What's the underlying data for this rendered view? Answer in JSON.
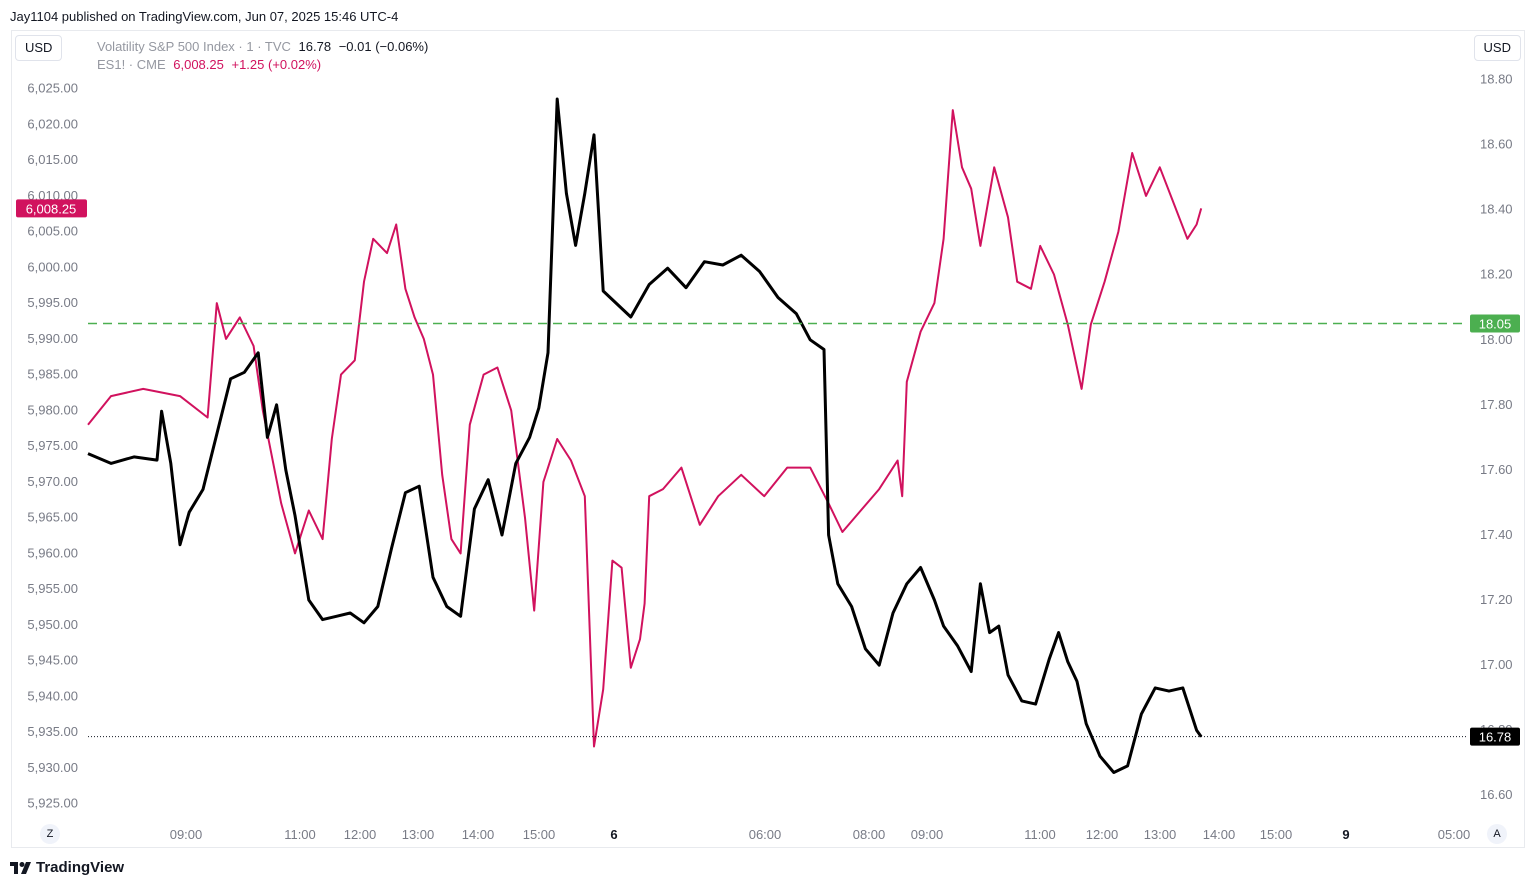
{
  "caption": "Jay1104 published on TradingView.com, Jun 07, 2025 15:46 UTC-4",
  "currency_left": "USD",
  "currency_right": "USD",
  "legend": [
    {
      "symbol": "Volatility S&P 500 Index · 1 · TVC",
      "last": "16.78",
      "change": "−0.01 (−0.06%)",
      "color": "#131722"
    },
    {
      "symbol": "ES1! · CME",
      "last": "6,008.25",
      "change": "+1.25 (+0.02%)",
      "color": "#d1125e"
    }
  ],
  "footer": {
    "brand": "TradingView",
    "left_nav": "Z",
    "right_nav": "A"
  },
  "chart_data": {
    "type": "line",
    "x_ticks": [
      "09:00",
      "11:00",
      "12:00",
      "13:00",
      "14:00",
      "15:00",
      "6",
      "06:00",
      "08:00",
      "09:00",
      "11:00",
      "12:00",
      "13:00",
      "14:00",
      "15:00",
      "9",
      "05:00"
    ],
    "left_axis": {
      "ticks": [
        "6,025.00",
        "6,020.00",
        "6,015.00",
        "6,010.00",
        "6,005.00",
        "6,000.00",
        "5,995.00",
        "5,990.00",
        "5,985.00",
        "5,980.00",
        "5,975.00",
        "5,970.00",
        "5,965.00",
        "5,960.00",
        "5,955.00",
        "5,950.00",
        "5,945.00",
        "5,940.00",
        "5,935.00",
        "5,930.00",
        "5,925.00"
      ],
      "range": [
        5923,
        6029
      ]
    },
    "right_axis": {
      "ticks": [
        "18.80",
        "18.60",
        "18.40",
        "18.20",
        "18.00",
        "17.80",
        "17.60",
        "17.40",
        "17.20",
        "17.00",
        "16.80",
        "16.60"
      ],
      "range": [
        16.53,
        18.86
      ]
    },
    "series": [
      {
        "name": "ES1! · CME",
        "color": "#d1125e",
        "axis": "left",
        "last_label": "6,008.25",
        "points": [
          [
            0,
            5978
          ],
          [
            5,
            5982
          ],
          [
            12,
            5983
          ],
          [
            20,
            5982
          ],
          [
            26,
            5979
          ],
          [
            28,
            5995
          ],
          [
            30,
            5990
          ],
          [
            33,
            5993
          ],
          [
            36,
            5989
          ],
          [
            38,
            5980
          ],
          [
            42,
            5967
          ],
          [
            45,
            5960
          ],
          [
            48,
            5966
          ],
          [
            51,
            5962
          ],
          [
            53,
            5976
          ],
          [
            55,
            5985
          ],
          [
            58,
            5987
          ],
          [
            60,
            5998
          ],
          [
            62,
            6004
          ],
          [
            65,
            6002
          ],
          [
            67,
            6006
          ],
          [
            69,
            5997
          ],
          [
            71,
            5993
          ],
          [
            73,
            5990
          ],
          [
            75,
            5985
          ],
          [
            77,
            5971
          ],
          [
            79,
            5962
          ],
          [
            81,
            5960
          ],
          [
            83,
            5978
          ],
          [
            86,
            5985
          ],
          [
            89,
            5986
          ],
          [
            92,
            5980
          ],
          [
            95,
            5965
          ],
          [
            97,
            5952
          ],
          [
            99,
            5970
          ],
          [
            102,
            5976
          ],
          [
            105,
            5973
          ],
          [
            108,
            5968
          ],
          [
            110,
            5933
          ],
          [
            112,
            5941
          ],
          [
            114,
            5959
          ],
          [
            116,
            5958
          ],
          [
            118,
            5944
          ],
          [
            120,
            5948
          ],
          [
            121,
            5953
          ],
          [
            122,
            5968
          ],
          [
            125,
            5969
          ],
          [
            129,
            5972
          ],
          [
            133,
            5964
          ],
          [
            137,
            5968
          ],
          [
            142,
            5971
          ],
          [
            147,
            5968
          ],
          [
            152,
            5972
          ],
          [
            157,
            5972
          ],
          [
            161,
            5967
          ],
          [
            164,
            5963
          ],
          [
            168,
            5966
          ],
          [
            172,
            5969
          ],
          [
            176,
            5973
          ],
          [
            177,
            5968
          ],
          [
            178,
            5984
          ],
          [
            181,
            5991
          ],
          [
            184,
            5995
          ],
          [
            186,
            6004
          ],
          [
            188,
            6022
          ],
          [
            190,
            6014
          ],
          [
            192,
            6011
          ],
          [
            194,
            6003
          ],
          [
            197,
            6014
          ],
          [
            200,
            6007
          ],
          [
            202,
            5998
          ],
          [
            205,
            5997
          ],
          [
            207,
            6003
          ],
          [
            210,
            5999
          ],
          [
            213,
            5992
          ],
          [
            216,
            5983
          ],
          [
            218,
            5992
          ],
          [
            221,
            5998
          ],
          [
            224,
            6005
          ],
          [
            227,
            6016
          ],
          [
            230,
            6010
          ],
          [
            233,
            6014
          ],
          [
            236,
            6009
          ],
          [
            239,
            6004
          ],
          [
            241,
            6006
          ],
          [
            242,
            6008.25
          ]
        ]
      },
      {
        "name": "Volatility S&P 500 Index · 1 · TVC",
        "color": "#000000",
        "axis": "right",
        "last_label": "16.78",
        "points": [
          [
            0,
            17.65
          ],
          [
            5,
            17.62
          ],
          [
            10,
            17.64
          ],
          [
            15,
            17.63
          ],
          [
            16,
            17.78
          ],
          [
            18,
            17.62
          ],
          [
            20,
            17.37
          ],
          [
            22,
            17.47
          ],
          [
            25,
            17.54
          ],
          [
            28,
            17.71
          ],
          [
            31,
            17.88
          ],
          [
            34,
            17.9
          ],
          [
            37,
            17.96
          ],
          [
            39,
            17.7
          ],
          [
            41,
            17.8
          ],
          [
            43,
            17.6
          ],
          [
            45,
            17.46
          ],
          [
            48,
            17.2
          ],
          [
            51,
            17.14
          ],
          [
            54,
            17.15
          ],
          [
            57,
            17.16
          ],
          [
            60,
            17.13
          ],
          [
            63,
            17.18
          ],
          [
            66,
            17.36
          ],
          [
            69,
            17.53
          ],
          [
            72,
            17.55
          ],
          [
            75,
            17.27
          ],
          [
            78,
            17.18
          ],
          [
            81,
            17.15
          ],
          [
            84,
            17.48
          ],
          [
            87,
            17.57
          ],
          [
            90,
            17.4
          ],
          [
            93,
            17.62
          ],
          [
            96,
            17.7
          ],
          [
            98,
            17.79
          ],
          [
            100,
            17.96
          ],
          [
            102,
            18.74
          ],
          [
            104,
            18.45
          ],
          [
            106,
            18.29
          ],
          [
            108,
            18.45
          ],
          [
            110,
            18.63
          ],
          [
            112,
            18.15
          ],
          [
            115,
            18.11
          ],
          [
            118,
            18.07
          ],
          [
            122,
            18.17
          ],
          [
            126,
            18.22
          ],
          [
            130,
            18.16
          ],
          [
            134,
            18.24
          ],
          [
            138,
            18.23
          ],
          [
            142,
            18.26
          ],
          [
            146,
            18.21
          ],
          [
            150,
            18.13
          ],
          [
            154,
            18.08
          ],
          [
            157,
            18.0
          ],
          [
            160,
            17.97
          ],
          [
            161,
            17.4
          ],
          [
            163,
            17.25
          ],
          [
            166,
            17.18
          ],
          [
            169,
            17.05
          ],
          [
            172,
            17.0
          ],
          [
            175,
            17.16
          ],
          [
            178,
            17.25
          ],
          [
            181,
            17.3
          ],
          [
            184,
            17.2
          ],
          [
            186,
            17.12
          ],
          [
            189,
            17.06
          ],
          [
            192,
            16.98
          ],
          [
            194,
            17.25
          ],
          [
            196,
            17.1
          ],
          [
            198,
            17.12
          ],
          [
            200,
            16.97
          ],
          [
            203,
            16.89
          ],
          [
            206,
            16.88
          ],
          [
            209,
            17.02
          ],
          [
            211,
            17.1
          ],
          [
            213,
            17.01
          ],
          [
            215,
            16.95
          ],
          [
            217,
            16.82
          ],
          [
            220,
            16.72
          ],
          [
            223,
            16.67
          ],
          [
            226,
            16.69
          ],
          [
            229,
            16.85
          ],
          [
            232,
            16.93
          ],
          [
            235,
            16.92
          ],
          [
            238,
            16.93
          ],
          [
            241,
            16.8
          ],
          [
            242,
            16.78
          ]
        ]
      }
    ],
    "reference_line": {
      "value": 18.05,
      "axis": "right",
      "label": "18.05",
      "color": "#4caf50",
      "style": "dashed"
    },
    "grid": false
  }
}
